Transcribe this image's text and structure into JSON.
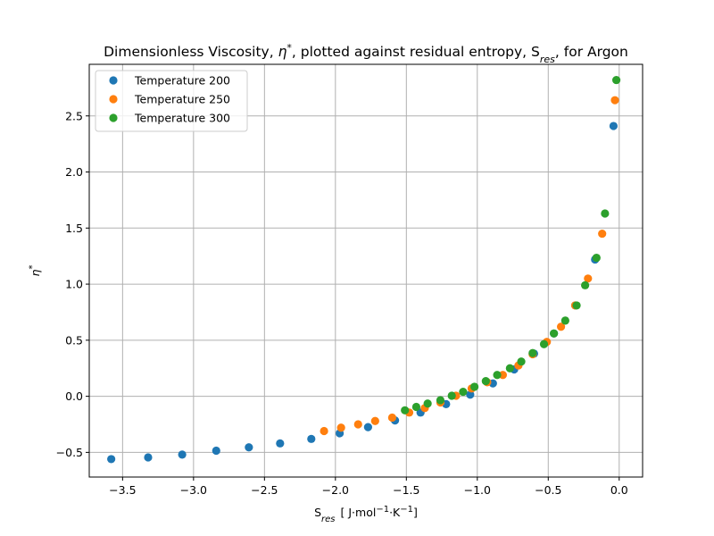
{
  "chart_data": {
    "type": "scatter",
    "title": {
      "main": "Dimensionless Viscosity, ",
      "eta": "η",
      "star": "*",
      "middle": ", plotted against residual entropy, S",
      "res": "res",
      "tail": ", for Argon"
    },
    "xlabel": {
      "base": "S",
      "sub": "res",
      "units_pre": "[ J·mol",
      "exp1": "−1",
      "units_mid": "·K",
      "exp2": "−1",
      "units_post": "]"
    },
    "ylabel": {
      "base": "η",
      "sup": "*"
    },
    "xlim": [
      -3.735,
      0.165
    ],
    "ylim": [
      -0.72,
      2.96
    ],
    "xticks": [
      -3.5,
      -3.0,
      -2.5,
      -2.0,
      -1.5,
      -1.0,
      -0.5,
      0.0
    ],
    "xtick_labels": [
      "−3.5",
      "−3.0",
      "−2.5",
      "−2.0",
      "−1.5",
      "−1.0",
      "−0.5",
      "0.0"
    ],
    "yticks": [
      -0.5,
      0.0,
      0.5,
      1.0,
      1.5,
      2.0,
      2.5
    ],
    "ytick_labels": [
      "−0.5",
      "0.0",
      "0.5",
      "1.0",
      "1.5",
      "2.0",
      "2.5"
    ],
    "grid": true,
    "legend_position": "upper-left",
    "series": [
      {
        "name": "Temperature 200",
        "color": "#1f77b4",
        "points": [
          [
            -3.58,
            -0.56
          ],
          [
            -3.32,
            -0.545
          ],
          [
            -3.08,
            -0.52
          ],
          [
            -2.84,
            -0.485
          ],
          [
            -2.61,
            -0.455
          ],
          [
            -2.39,
            -0.42
          ],
          [
            -2.17,
            -0.38
          ],
          [
            -1.97,
            -0.33
          ],
          [
            -1.77,
            -0.275
          ],
          [
            -1.58,
            -0.215
          ],
          [
            -1.4,
            -0.145
          ],
          [
            -1.22,
            -0.07
          ],
          [
            -1.05,
            0.015
          ],
          [
            -0.89,
            0.115
          ],
          [
            -0.74,
            0.24
          ],
          [
            -0.6,
            0.38
          ],
          [
            -0.46,
            0.56
          ],
          [
            -0.31,
            0.81
          ],
          [
            -0.17,
            1.22
          ],
          [
            -0.04,
            2.41
          ]
        ]
      },
      {
        "name": "Temperature 250",
        "color": "#ff7f0e",
        "points": [
          [
            -2.08,
            -0.31
          ],
          [
            -1.96,
            -0.28
          ],
          [
            -1.84,
            -0.25
          ],
          [
            -1.72,
            -0.22
          ],
          [
            -1.6,
            -0.19
          ],
          [
            -1.48,
            -0.145
          ],
          [
            -1.37,
            -0.105
          ],
          [
            -1.26,
            -0.055
          ],
          [
            -1.15,
            0.005
          ],
          [
            -1.04,
            0.07
          ],
          [
            -0.93,
            0.125
          ],
          [
            -0.82,
            0.19
          ],
          [
            -0.71,
            0.275
          ],
          [
            -0.61,
            0.375
          ],
          [
            -0.51,
            0.485
          ],
          [
            -0.41,
            0.62
          ],
          [
            -0.31,
            0.81
          ],
          [
            -0.22,
            1.05
          ],
          [
            -0.12,
            1.45
          ],
          [
            -0.03,
            2.64
          ]
        ]
      },
      {
        "name": "Temperature 300",
        "color": "#2ca02c",
        "points": [
          [
            -1.51,
            -0.125
          ],
          [
            -1.43,
            -0.095
          ],
          [
            -1.35,
            -0.065
          ],
          [
            -1.26,
            -0.035
          ],
          [
            -1.18,
            0.005
          ],
          [
            -1.1,
            0.04
          ],
          [
            -1.02,
            0.085
          ],
          [
            -0.94,
            0.135
          ],
          [
            -0.86,
            0.19
          ],
          [
            -0.77,
            0.25
          ],
          [
            -0.69,
            0.31
          ],
          [
            -0.61,
            0.385
          ],
          [
            -0.53,
            0.465
          ],
          [
            -0.46,
            0.56
          ],
          [
            -0.38,
            0.675
          ],
          [
            -0.3,
            0.81
          ],
          [
            -0.24,
            0.99
          ],
          [
            -0.16,
            1.235
          ],
          [
            -0.1,
            1.63
          ],
          [
            -0.02,
            2.82
          ]
        ]
      }
    ]
  }
}
